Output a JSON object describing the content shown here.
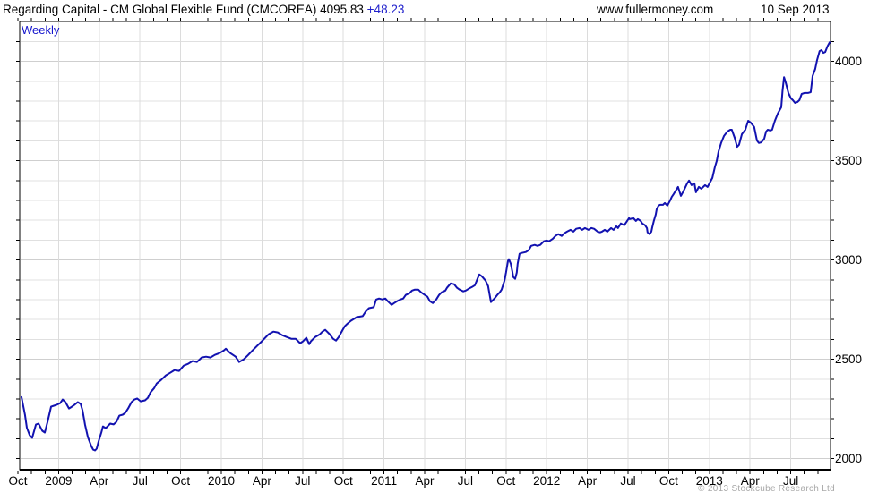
{
  "header": {
    "title": "Regarding Capital - CM Global Flexible Fund (CMCOREA) 4095.83 ",
    "title_change": "+48.23",
    "site": "www.fullermoney.com",
    "date": "10 Sep 2013"
  },
  "chart": {
    "frequency_label": "Weekly",
    "copyright": "© 2013 Stockcube Research Ltd"
  },
  "colors": {
    "line": "#1212b0",
    "grid_minor": "#e0e0e0",
    "grid_major": "#cfcfcf",
    "grid_vertical": "#dcdcdc",
    "axis": "#000000",
    "accent_blue": "#2222cc",
    "copyright_gray": "#a8a8a8"
  },
  "chart_data": {
    "type": "line",
    "title": "Regarding Capital - CM Global Flexible Fund (CMCOREA)",
    "frequency": "Weekly",
    "last_value": 4095.83,
    "change": 48.23,
    "as_of": "10 Sep 2013",
    "x_unit": "weeks since start (late Sep 2008)",
    "xlim_weeks": [
      0,
      257
    ],
    "x_tick_labels": [
      "Oct",
      "2009",
      "Apr",
      "Jul",
      "Oct",
      "2010",
      "Apr",
      "Jul",
      "Oct",
      "2011",
      "Apr",
      "Jul",
      "Oct",
      "2012",
      "Apr",
      "Jul",
      "Oct",
      "2013",
      "Apr",
      "Jul"
    ],
    "x_months_per_label": 3,
    "x_minor_tick": "monthly",
    "y_ticks": [
      2000,
      2500,
      3000,
      3500,
      4000
    ],
    "y_minor_step": 100,
    "ylim": [
      1944,
      4201
    ],
    "grid": true,
    "legend_position": "none",
    "points": [
      [
        0,
        2310
      ],
      [
        1.1,
        2220
      ],
      [
        1.7,
        2155
      ],
      [
        2.6,
        2118
      ],
      [
        3.4,
        2104
      ],
      [
        4.6,
        2171
      ],
      [
        5.4,
        2176
      ],
      [
        6.6,
        2140
      ],
      [
        7.4,
        2131
      ],
      [
        8.3,
        2185
      ],
      [
        9.4,
        2261
      ],
      [
        10.3,
        2266
      ],
      [
        11.1,
        2270
      ],
      [
        12.3,
        2279
      ],
      [
        13.1,
        2297
      ],
      [
        14,
        2284
      ],
      [
        15.1,
        2252
      ],
      [
        16,
        2261
      ],
      [
        16.8,
        2270
      ],
      [
        17.9,
        2284
      ],
      [
        18.8,
        2275
      ],
      [
        19.4,
        2243
      ],
      [
        20.2,
        2171
      ],
      [
        21.1,
        2108
      ],
      [
        22.2,
        2063
      ],
      [
        22.8,
        2045
      ],
      [
        23.4,
        2041
      ],
      [
        23.9,
        2050
      ],
      [
        24.5,
        2086
      ],
      [
        25.4,
        2131
      ],
      [
        25.9,
        2162
      ],
      [
        26.8,
        2153
      ],
      [
        28.2,
        2176
      ],
      [
        29.3,
        2172
      ],
      [
        30.2,
        2185
      ],
      [
        31.1,
        2216
      ],
      [
        32.2,
        2221
      ],
      [
        33,
        2230
      ],
      [
        33.9,
        2252
      ],
      [
        35,
        2284
      ],
      [
        35.9,
        2297
      ],
      [
        36.8,
        2302
      ],
      [
        37.9,
        2288
      ],
      [
        39.3,
        2293
      ],
      [
        40.2,
        2306
      ],
      [
        41,
        2333
      ],
      [
        42.2,
        2355
      ],
      [
        43,
        2378
      ],
      [
        44.4,
        2396
      ],
      [
        45.9,
        2419
      ],
      [
        47.3,
        2432
      ],
      [
        48.7,
        2446
      ],
      [
        50.1,
        2441
      ],
      [
        51.6,
        2468
      ],
      [
        53,
        2477
      ],
      [
        54.4,
        2491
      ],
      [
        55.8,
        2486
      ],
      [
        57.3,
        2509
      ],
      [
        58.7,
        2513
      ],
      [
        60.1,
        2509
      ],
      [
        61.5,
        2522
      ],
      [
        63,
        2531
      ],
      [
        64.4,
        2545
      ],
      [
        65,
        2553
      ],
      [
        66.4,
        2531
      ],
      [
        68.1,
        2513
      ],
      [
        69.2,
        2486
      ],
      [
        70.7,
        2500
      ],
      [
        72.1,
        2522
      ],
      [
        73.5,
        2545
      ],
      [
        74.9,
        2567
      ],
      [
        76.4,
        2590
      ],
      [
        78.6,
        2626
      ],
      [
        80.1,
        2639
      ],
      [
        81.5,
        2635
      ],
      [
        82.9,
        2621
      ],
      [
        84.3,
        2612
      ],
      [
        85.8,
        2603
      ],
      [
        87.2,
        2603
      ],
      [
        88.6,
        2581
      ],
      [
        89.5,
        2590
      ],
      [
        90.6,
        2608
      ],
      [
        91.5,
        2576
      ],
      [
        92,
        2590
      ],
      [
        93.4,
        2612
      ],
      [
        94.9,
        2626
      ],
      [
        95.7,
        2639
      ],
      [
        96.6,
        2648
      ],
      [
        98,
        2626
      ],
      [
        99.1,
        2603
      ],
      [
        100,
        2594
      ],
      [
        100.9,
        2612
      ],
      [
        102,
        2644
      ],
      [
        102.8,
        2666
      ],
      [
        103.7,
        2680
      ],
      [
        104.8,
        2694
      ],
      [
        105.7,
        2703
      ],
      [
        106.6,
        2712
      ],
      [
        108.5,
        2717
      ],
      [
        109.4,
        2739
      ],
      [
        110.5,
        2757
      ],
      [
        112,
        2762
      ],
      [
        112.8,
        2801
      ],
      [
        113.7,
        2806
      ],
      [
        114.8,
        2801
      ],
      [
        115.7,
        2806
      ],
      [
        116.5,
        2792
      ],
      [
        117.7,
        2774
      ],
      [
        118.5,
        2783
      ],
      [
        119.4,
        2792
      ],
      [
        120.5,
        2801
      ],
      [
        121.4,
        2806
      ],
      [
        122.2,
        2824
      ],
      [
        123.4,
        2833
      ],
      [
        124.2,
        2846
      ],
      [
        125.1,
        2851
      ],
      [
        126.2,
        2851
      ],
      [
        127.1,
        2837
      ],
      [
        127.9,
        2828
      ],
      [
        129.1,
        2815
      ],
      [
        129.9,
        2792
      ],
      [
        130.8,
        2783
      ],
      [
        131.9,
        2801
      ],
      [
        132.8,
        2824
      ],
      [
        133.6,
        2837
      ],
      [
        134.8,
        2846
      ],
      [
        135.3,
        2860
      ],
      [
        136.5,
        2882
      ],
      [
        137.6,
        2878
      ],
      [
        138.5,
        2860
      ],
      [
        139.3,
        2851
      ],
      [
        140.5,
        2842
      ],
      [
        141.3,
        2846
      ],
      [
        142.2,
        2855
      ],
      [
        143.3,
        2864
      ],
      [
        144.2,
        2873
      ],
      [
        145,
        2905
      ],
      [
        145.6,
        2927
      ],
      [
        146.4,
        2918
      ],
      [
        147.6,
        2896
      ],
      [
        148.4,
        2869
      ],
      [
        149.3,
        2788
      ],
      [
        150.4,
        2806
      ],
      [
        151.3,
        2824
      ],
      [
        152.1,
        2837
      ],
      [
        152.7,
        2851
      ],
      [
        153.6,
        2896
      ],
      [
        154.1,
        2936
      ],
      [
        154.7,
        2995
      ],
      [
        155,
        3004
      ],
      [
        155.6,
        2981
      ],
      [
        156.1,
        2941
      ],
      [
        156.4,
        2914
      ],
      [
        157,
        2905
      ],
      [
        157.5,
        2936
      ],
      [
        157.8,
        2981
      ],
      [
        158.4,
        3031
      ],
      [
        159,
        3035
      ],
      [
        160.4,
        3040
      ],
      [
        161.3,
        3049
      ],
      [
        162.1,
        3071
      ],
      [
        163.2,
        3076
      ],
      [
        164.1,
        3071
      ],
      [
        165,
        3076
      ],
      [
        166.1,
        3094
      ],
      [
        167,
        3098
      ],
      [
        167.8,
        3094
      ],
      [
        169,
        3107
      ],
      [
        169.8,
        3121
      ],
      [
        170.7,
        3130
      ],
      [
        171.8,
        3121
      ],
      [
        172.6,
        3134
      ],
      [
        173.5,
        3143
      ],
      [
        174.6,
        3152
      ],
      [
        175.5,
        3143
      ],
      [
        176.4,
        3157
      ],
      [
        177.5,
        3161
      ],
      [
        178.3,
        3152
      ],
      [
        179.2,
        3161
      ],
      [
        180.3,
        3152
      ],
      [
        181.2,
        3161
      ],
      [
        182.1,
        3157
      ],
      [
        183.2,
        3143
      ],
      [
        184,
        3139
      ],
      [
        184.6,
        3143
      ],
      [
        185.5,
        3152
      ],
      [
        186.3,
        3143
      ],
      [
        187.5,
        3161
      ],
      [
        188.3,
        3152
      ],
      [
        189.2,
        3170
      ],
      [
        189.7,
        3161
      ],
      [
        190.6,
        3184
      ],
      [
        191.7,
        3175
      ],
      [
        192.6,
        3197
      ],
      [
        193.2,
        3211
      ],
      [
        193.4,
        3206
      ],
      [
        194.6,
        3211
      ],
      [
        195.4,
        3197
      ],
      [
        196,
        3206
      ],
      [
        196.9,
        3197
      ],
      [
        197.4,
        3184
      ],
      [
        198.3,
        3175
      ],
      [
        198.9,
        3161
      ],
      [
        199.1,
        3139
      ],
      [
        199.7,
        3130
      ],
      [
        200.3,
        3143
      ],
      [
        200.6,
        3166
      ],
      [
        201.1,
        3197
      ],
      [
        201.7,
        3229
      ],
      [
        202,
        3256
      ],
      [
        202.6,
        3274
      ],
      [
        203.1,
        3278
      ],
      [
        204,
        3278
      ],
      [
        204.6,
        3287
      ],
      [
        205.4,
        3274
      ],
      [
        206.3,
        3301
      ],
      [
        206.8,
        3318
      ],
      [
        207.4,
        3332
      ],
      [
        208.3,
        3355
      ],
      [
        208.8,
        3368
      ],
      [
        209.7,
        3323
      ],
      [
        210.5,
        3346
      ],
      [
        211.7,
        3386
      ],
      [
        212.3,
        3400
      ],
      [
        213.1,
        3377
      ],
      [
        214,
        3386
      ],
      [
        214.5,
        3341
      ],
      [
        215.4,
        3368
      ],
      [
        216.2,
        3359
      ],
      [
        217.4,
        3377
      ],
      [
        218.2,
        3368
      ],
      [
        218.8,
        3386
      ],
      [
        219.7,
        3413
      ],
      [
        220.5,
        3467
      ],
      [
        221.1,
        3499
      ],
      [
        221.7,
        3548
      ],
      [
        222.5,
        3589
      ],
      [
        223.4,
        3625
      ],
      [
        224.5,
        3647
      ],
      [
        225.4,
        3656
      ],
      [
        225.9,
        3656
      ],
      [
        226.8,
        3616
      ],
      [
        227.6,
        3570
      ],
      [
        228.2,
        3580
      ],
      [
        229.1,
        3634
      ],
      [
        230.2,
        3656
      ],
      [
        231.1,
        3701
      ],
      [
        231.9,
        3692
      ],
      [
        233,
        3670
      ],
      [
        233.9,
        3602
      ],
      [
        234.5,
        3589
      ],
      [
        235.3,
        3593
      ],
      [
        236.2,
        3611
      ],
      [
        236.8,
        3647
      ],
      [
        237.3,
        3656
      ],
      [
        238.2,
        3652
      ],
      [
        238.7,
        3656
      ],
      [
        239.6,
        3701
      ],
      [
        240.5,
        3737
      ],
      [
        241,
        3751
      ],
      [
        241.6,
        3769
      ],
      [
        242,
        3850
      ],
      [
        242.5,
        3921
      ],
      [
        243,
        3895
      ],
      [
        243.9,
        3841
      ],
      [
        244.7,
        3814
      ],
      [
        245.3,
        3805
      ],
      [
        246,
        3791
      ],
      [
        246.8,
        3796
      ],
      [
        247.4,
        3805
      ],
      [
        248.1,
        3836
      ],
      [
        249,
        3841
      ],
      [
        250.1,
        3841
      ],
      [
        251,
        3845
      ],
      [
        251.6,
        3926
      ],
      [
        252.4,
        3962
      ],
      [
        253,
        4007
      ],
      [
        253.8,
        4052
      ],
      [
        254.4,
        4057
      ],
      [
        255,
        4043
      ],
      [
        255.6,
        4047.6
      ],
      [
        256.3,
        4075
      ],
      [
        257,
        4095.83
      ]
    ]
  }
}
